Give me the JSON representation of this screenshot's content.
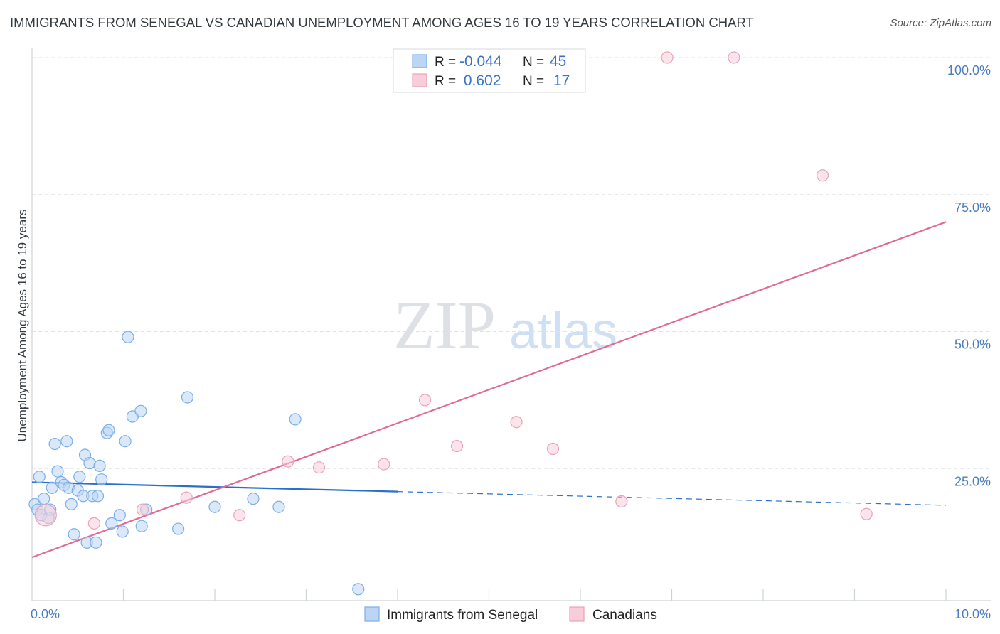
{
  "chart_data": {
    "type": "scatter",
    "title": "IMMIGRANTS FROM SENEGAL VS CANADIAN UNEMPLOYMENT AMONG AGES 16 TO 19 YEARS CORRELATION CHART",
    "source": "Source: ZipAtlas.com",
    "watermark_zip": "ZIP",
    "watermark_atlas": "atlas",
    "xlabel": "",
    "ylabel": "Unemployment Among Ages 16 to 19 years",
    "xlim": [
      0,
      10
    ],
    "ylim": [
      0,
      100
    ],
    "x_tick_labels": [
      {
        "value": 0,
        "label": "0.0%"
      },
      {
        "value": 10,
        "label": "10.0%"
      }
    ],
    "y_tick_labels": [
      {
        "value": 25,
        "label": "25.0%"
      },
      {
        "value": 50,
        "label": "50.0%"
      },
      {
        "value": 75,
        "label": "75.0%"
      },
      {
        "value": 100,
        "label": "100.0%"
      }
    ],
    "legend_top": [
      {
        "r_label": "R =",
        "r_value": "-0.044",
        "n_label": "N =",
        "n_value": "45",
        "series": 0
      },
      {
        "r_label": "R =",
        "r_value": " 0.602",
        "n_label": "N =",
        "n_value": "17",
        "series": 1
      }
    ],
    "series": [
      {
        "name": "Immigrants from Senegal",
        "color": "#7aaee8",
        "fill": "#bcd5f5",
        "line_color": "#2a6fcc",
        "trend": {
          "x1": 0.0,
          "y1": 22.5,
          "x2": 4.0,
          "y2": 20.8,
          "dash_x2": 10.0,
          "dash_y2": 18.3
        },
        "points": [
          {
            "x": 0.03,
            "y": 18.5
          },
          {
            "x": 0.06,
            "y": 17.5
          },
          {
            "x": 0.08,
            "y": 23.5
          },
          {
            "x": 0.1,
            "y": 16.5
          },
          {
            "x": 0.13,
            "y": 19.5
          },
          {
            "x": 0.18,
            "y": 16.0
          },
          {
            "x": 0.2,
            "y": 17.5
          },
          {
            "x": 0.22,
            "y": 21.5
          },
          {
            "x": 0.25,
            "y": 29.5
          },
          {
            "x": 0.28,
            "y": 24.5
          },
          {
            "x": 0.32,
            "y": 22.5
          },
          {
            "x": 0.35,
            "y": 22.0
          },
          {
            "x": 0.38,
            "y": 30.0
          },
          {
            "x": 0.4,
            "y": 21.5
          },
          {
            "x": 0.43,
            "y": 18.5
          },
          {
            "x": 0.46,
            "y": 13.0
          },
          {
            "x": 0.5,
            "y": 21.0
          },
          {
            "x": 0.52,
            "y": 23.5
          },
          {
            "x": 0.56,
            "y": 20.0
          },
          {
            "x": 0.58,
            "y": 27.5
          },
          {
            "x": 0.6,
            "y": 11.5
          },
          {
            "x": 0.63,
            "y": 26.0
          },
          {
            "x": 0.66,
            "y": 20.0
          },
          {
            "x": 0.7,
            "y": 11.5
          },
          {
            "x": 0.72,
            "y": 20.0
          },
          {
            "x": 0.74,
            "y": 25.5
          },
          {
            "x": 0.76,
            "y": 23.0
          },
          {
            "x": 0.82,
            "y": 31.5
          },
          {
            "x": 0.84,
            "y": 32.0
          },
          {
            "x": 0.87,
            "y": 15.0
          },
          {
            "x": 0.96,
            "y": 16.5
          },
          {
            "x": 0.99,
            "y": 13.5
          },
          {
            "x": 1.02,
            "y": 30.0
          },
          {
            "x": 1.05,
            "y": 49.0
          },
          {
            "x": 1.1,
            "y": 34.5
          },
          {
            "x": 1.19,
            "y": 35.5
          },
          {
            "x": 1.2,
            "y": 14.5
          },
          {
            "x": 1.25,
            "y": 17.5
          },
          {
            "x": 1.6,
            "y": 14.0
          },
          {
            "x": 1.7,
            "y": 38.0
          },
          {
            "x": 2.0,
            "y": 18.0
          },
          {
            "x": 2.42,
            "y": 19.5
          },
          {
            "x": 2.7,
            "y": 18.0
          },
          {
            "x": 2.88,
            "y": 34.0
          },
          {
            "x": 3.57,
            "y": 3.0
          }
        ]
      },
      {
        "name": "Canadians",
        "color": "#e8a3b8",
        "fill": "#f8cdd9",
        "line_color": "#e06b93",
        "trend": {
          "x1": 0.0,
          "y1": 8.8,
          "x2": 10.0,
          "y2": 70.0
        },
        "points": [
          {
            "x": 0.15,
            "y": 16.5,
            "big": true
          },
          {
            "x": 0.68,
            "y": 15.0
          },
          {
            "x": 1.21,
            "y": 17.5
          },
          {
            "x": 1.69,
            "y": 19.7
          },
          {
            "x": 2.27,
            "y": 16.5
          },
          {
            "x": 2.8,
            "y": 26.3
          },
          {
            "x": 3.14,
            "y": 25.2
          },
          {
            "x": 3.85,
            "y": 25.8
          },
          {
            "x": 4.3,
            "y": 37.5
          },
          {
            "x": 4.65,
            "y": 29.1
          },
          {
            "x": 5.3,
            "y": 33.5
          },
          {
            "x": 5.7,
            "y": 28.6
          },
          {
            "x": 6.45,
            "y": 19.0
          },
          {
            "x": 6.95,
            "y": 100.0
          },
          {
            "x": 7.68,
            "y": 100.0
          },
          {
            "x": 8.65,
            "y": 78.5
          },
          {
            "x": 9.13,
            "y": 16.7
          }
        ]
      }
    ]
  }
}
